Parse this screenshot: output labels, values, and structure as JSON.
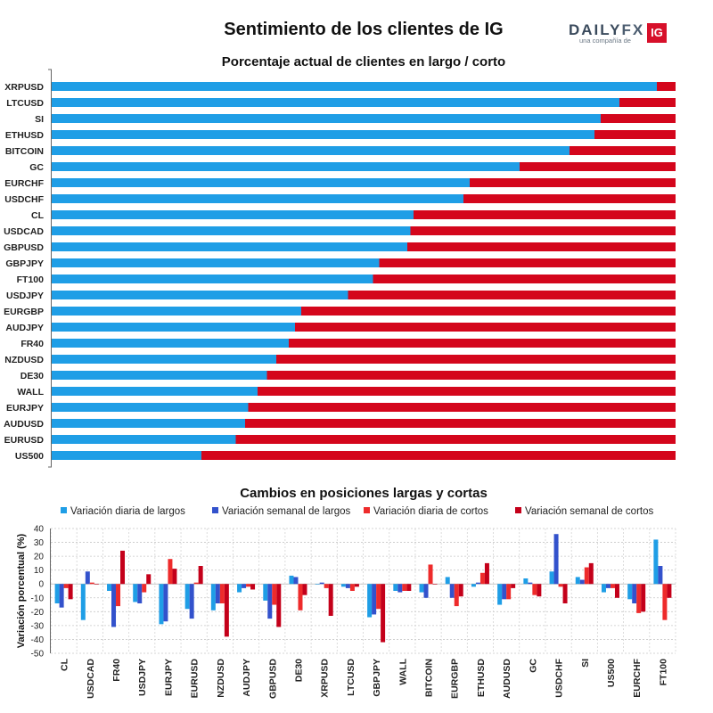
{
  "header": {
    "title": "Sentimiento de los clientes de IG",
    "logo_word_a": "DAILY",
    "logo_word_b": "FX",
    "logo_sub": "una compañía de",
    "logo_badge": "IG"
  },
  "colors": {
    "long": "#1f9ee6",
    "short": "#d4061c",
    "weekly_long": "#3352cc",
    "daily_short": "#ee2b2b",
    "weekly_short": "#c4001a"
  },
  "chart_data": [
    {
      "type": "bar",
      "orientation": "horizontal-stacked",
      "title": "Porcentaje actual de clientes en largo / corto",
      "xlim": [
        0,
        100
      ],
      "categories": [
        "XRPUSD",
        "LTCUSD",
        "SI",
        "ETHUSD",
        "BITCOIN",
        "GC",
        "EURCHF",
        "USDCHF",
        "CL",
        "USDCAD",
        "GBPUSD",
        "GBPJPY",
        "FT100",
        "USDJPY",
        "EURGBP",
        "AUDJPY",
        "FR40",
        "NZDUSD",
        "DE30",
        "WALL",
        "EURJPY",
        "AUDUSD",
        "EURUSD",
        "US500"
      ],
      "series": [
        {
          "name": "Largo",
          "values": [
            97,
            91,
            88,
            87,
            83,
            75,
            67,
            66,
            58,
            57.5,
            57,
            52.5,
            51.5,
            47.5,
            40,
            39,
            38,
            36,
            34.5,
            33,
            31.5,
            31,
            29.5,
            24
          ]
        },
        {
          "name": "Corto",
          "values": [
            3,
            9,
            12,
            13,
            17,
            25,
            33,
            34,
            42,
            42.5,
            43,
            47.5,
            48.5,
            52.5,
            60,
            61,
            62,
            64,
            65.5,
            67,
            68.5,
            69,
            70.5,
            76
          ]
        }
      ]
    },
    {
      "type": "bar",
      "title": "Cambios en posiciones largas y cortas",
      "ylabel": "Variación porcentual (%)",
      "ylim": [
        -50,
        40
      ],
      "yticks": [
        -50,
        -40,
        -30,
        -20,
        -10,
        0,
        10,
        20,
        30,
        40
      ],
      "categories": [
        "CL",
        "USDCAD",
        "FR40",
        "USDJPY",
        "EURJPY",
        "EURUSD",
        "NZDUSD",
        "AUDJPY",
        "GBPUSD",
        "DE30",
        "XRPUSD",
        "LTCUSD",
        "GBPJPY",
        "WALL",
        "BITCOIN",
        "EURGBP",
        "ETHUSD",
        "AUDUSD",
        "GC",
        "USDCHF",
        "SI",
        "US500",
        "EURCHF",
        "FT100"
      ],
      "series": [
        {
          "name": "Variación diaria de largos",
          "values": [
            -14,
            -26,
            -5,
            -13,
            -29,
            -18,
            -19,
            -6,
            -12,
            6,
            0,
            -2,
            -24,
            -5,
            -6,
            5,
            -2,
            -15,
            4,
            9,
            5,
            -6,
            -11,
            32
          ]
        },
        {
          "name": "Variación semanal de largos",
          "values": [
            -17,
            9,
            -31,
            -14,
            -27,
            -25,
            -14,
            -3,
            -25,
            5,
            1,
            -3,
            -22,
            -6,
            -10,
            -10,
            1,
            -11,
            1,
            36,
            3,
            -3,
            -14,
            13
          ]
        },
        {
          "name": "Variación diaria de cortos",
          "values": [
            -3,
            1,
            -16,
            -6,
            18,
            1,
            -14,
            -2,
            -15,
            -19,
            -3,
            -5,
            -18,
            -5,
            14,
            -16,
            8,
            -11,
            -8,
            -2,
            12,
            -3,
            -21,
            -26
          ]
        },
        {
          "name": "Variación semanal de cortos",
          "values": [
            -11,
            0,
            24,
            7,
            11,
            13,
            -38,
            -4,
            -31,
            -8,
            -23,
            -2,
            -42,
            -5,
            0,
            -9,
            15,
            -3,
            -9,
            -14,
            15,
            -10,
            -20,
            -10
          ]
        }
      ]
    }
  ]
}
